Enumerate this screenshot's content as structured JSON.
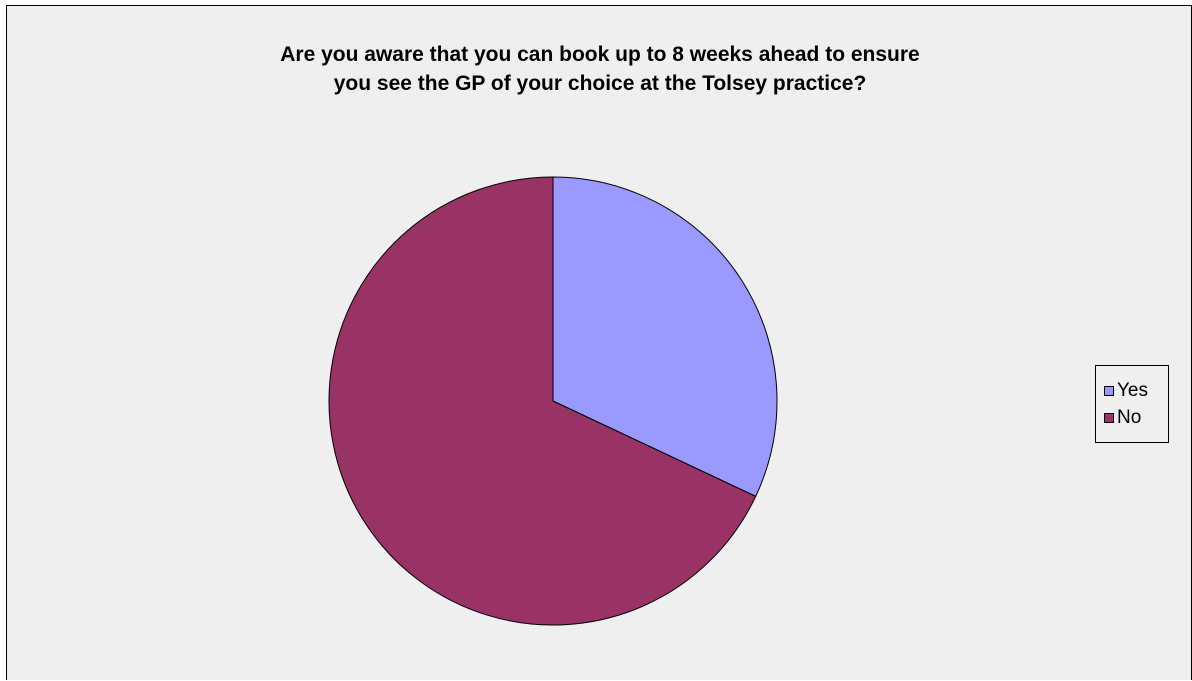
{
  "chart_data": {
    "type": "pie",
    "title": "Are you aware that you can book up to 8 weeks ahead to ensure\nyou see the GP of your choice at the Tolsey practice?",
    "categories": [
      "Yes",
      "No"
    ],
    "values": [
      32,
      68
    ],
    "colors": [
      "#9999ff",
      "#993366"
    ],
    "start_angle": "12 o'clock, clockwise",
    "legend_position": "right",
    "background": "#efefef"
  }
}
